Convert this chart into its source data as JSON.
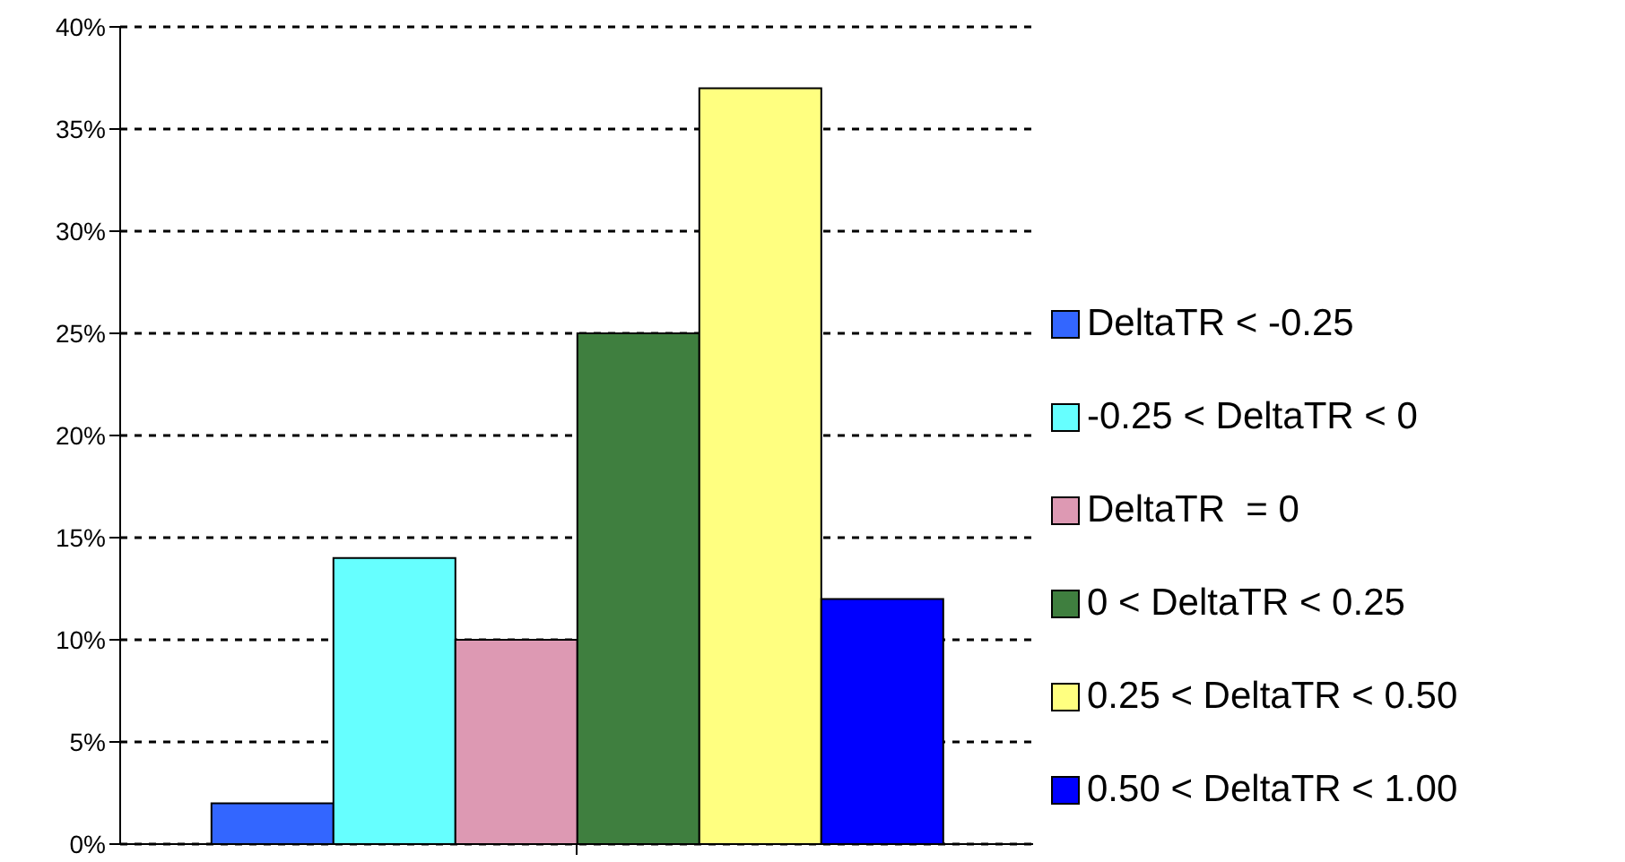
{
  "chart_data": {
    "type": "bar",
    "categories": [
      null
    ],
    "series": [
      {
        "name": "DeltaTR < -0.25",
        "color": "#3366ff",
        "values": [
          2
        ]
      },
      {
        "name": "-0.25 < DeltaTR < 0",
        "color": "#66ffff",
        "values": [
          14
        ]
      },
      {
        "name": "DeltaTR  = 0",
        "color": "#dd99b3",
        "values": [
          10
        ]
      },
      {
        "name": "0 < DeltaTR < 0.25",
        "color": "#3f7f3f",
        "values": [
          25
        ]
      },
      {
        "name": "0.25 < DeltaTR < 0.50",
        "color": "#ffff80",
        "values": [
          37
        ]
      },
      {
        "name": "0.50 < DeltaTR < 1.00",
        "color": "#0000ff",
        "values": [
          12
        ]
      }
    ],
    "ylim": [
      0,
      40
    ],
    "yticks": [
      {
        "value": 0,
        "label": "0%"
      },
      {
        "value": 5,
        "label": "5%"
      },
      {
        "value": 10,
        "label": "10%"
      },
      {
        "value": 15,
        "label": "15%"
      },
      {
        "value": 20,
        "label": "20%"
      },
      {
        "value": 25,
        "label": "25%"
      },
      {
        "value": 30,
        "label": "30%"
      },
      {
        "value": 35,
        "label": "35%"
      },
      {
        "value": 40,
        "label": "40%"
      }
    ],
    "grid": "y",
    "legend": "right"
  }
}
